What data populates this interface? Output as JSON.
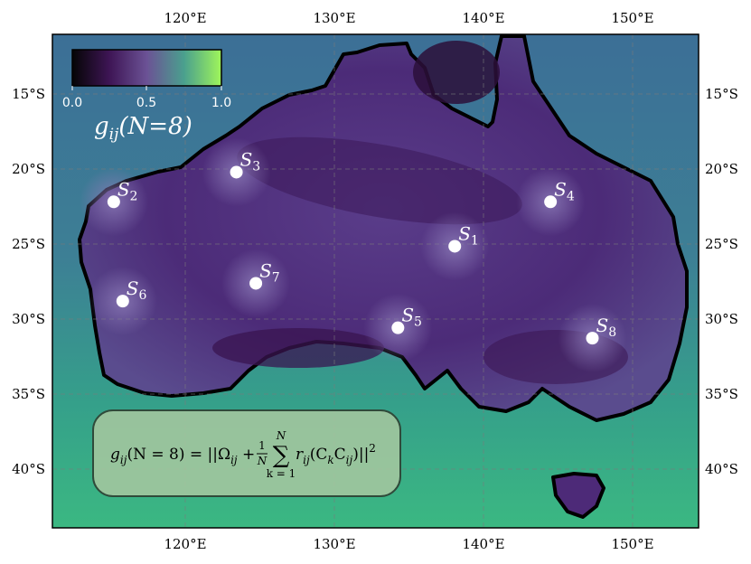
{
  "map": {
    "lon_ticks": [
      "120°E",
      "130°E",
      "140°E",
      "150°E"
    ],
    "lat_ticks": [
      "15°S",
      "20°S",
      "25°S",
      "30°S",
      "35°S",
      "40°S"
    ],
    "lon_range": [
      111.2,
      154.4
    ],
    "lat_range": [
      -10.7,
      -44.0
    ],
    "grid": true,
    "colormap": "viridis-like purple-to-green",
    "colorbar": {
      "ticks": [
        "0.0",
        "0.5",
        "1.0"
      ],
      "label_main": "g",
      "label_sub": "ij",
      "label_arg": "(N=8)"
    },
    "stations": [
      {
        "id": "S1",
        "name": "S",
        "sub": "1",
        "lon": 138.1,
        "lat": -25.0
      },
      {
        "id": "S2",
        "name": "S",
        "sub": "2",
        "lon": 115.3,
        "lat": -22.0
      },
      {
        "id": "S3",
        "name": "S",
        "sub": "3",
        "lon": 123.5,
        "lat": -20.0
      },
      {
        "id": "S4",
        "name": "S",
        "sub": "4",
        "lon": 144.5,
        "lat": -22.0
      },
      {
        "id": "S5",
        "name": "S",
        "sub": "5",
        "lon": 134.3,
        "lat": -30.5
      },
      {
        "id": "S6",
        "name": "S",
        "sub": "6",
        "lon": 115.9,
        "lat": -28.7
      },
      {
        "id": "S7",
        "name": "S",
        "sub": "7",
        "lon": 124.8,
        "lat": -27.5
      },
      {
        "id": "S8",
        "name": "S",
        "sub": "8",
        "lon": 147.3,
        "lat": -31.2
      }
    ],
    "formula": {
      "lhs_g": "g",
      "lhs_sub": "ij",
      "lhs_arg": "(N = 8) = ",
      "norm_open": "||Ω",
      "omega_sub": "ij",
      "plus": " + ",
      "frac_num": "1",
      "frac_den": "N",
      "sum_top": "N",
      "sum_sym": "∑",
      "sum_bottom": "k = 1",
      "r": "r",
      "r_sub": "ij",
      "paren_open": "(C",
      "ck_sub": "k",
      "c2": "C",
      "cij_sub": "ij",
      "paren_close": ")||",
      "power": "2"
    },
    "colors": {
      "ocean": "#2e9e8c",
      "land_low": "#3a1550",
      "land_high": "#6a4f9a",
      "coast": "#000000",
      "station": "#ffffff",
      "formula_box": "#a8c8a0"
    }
  }
}
